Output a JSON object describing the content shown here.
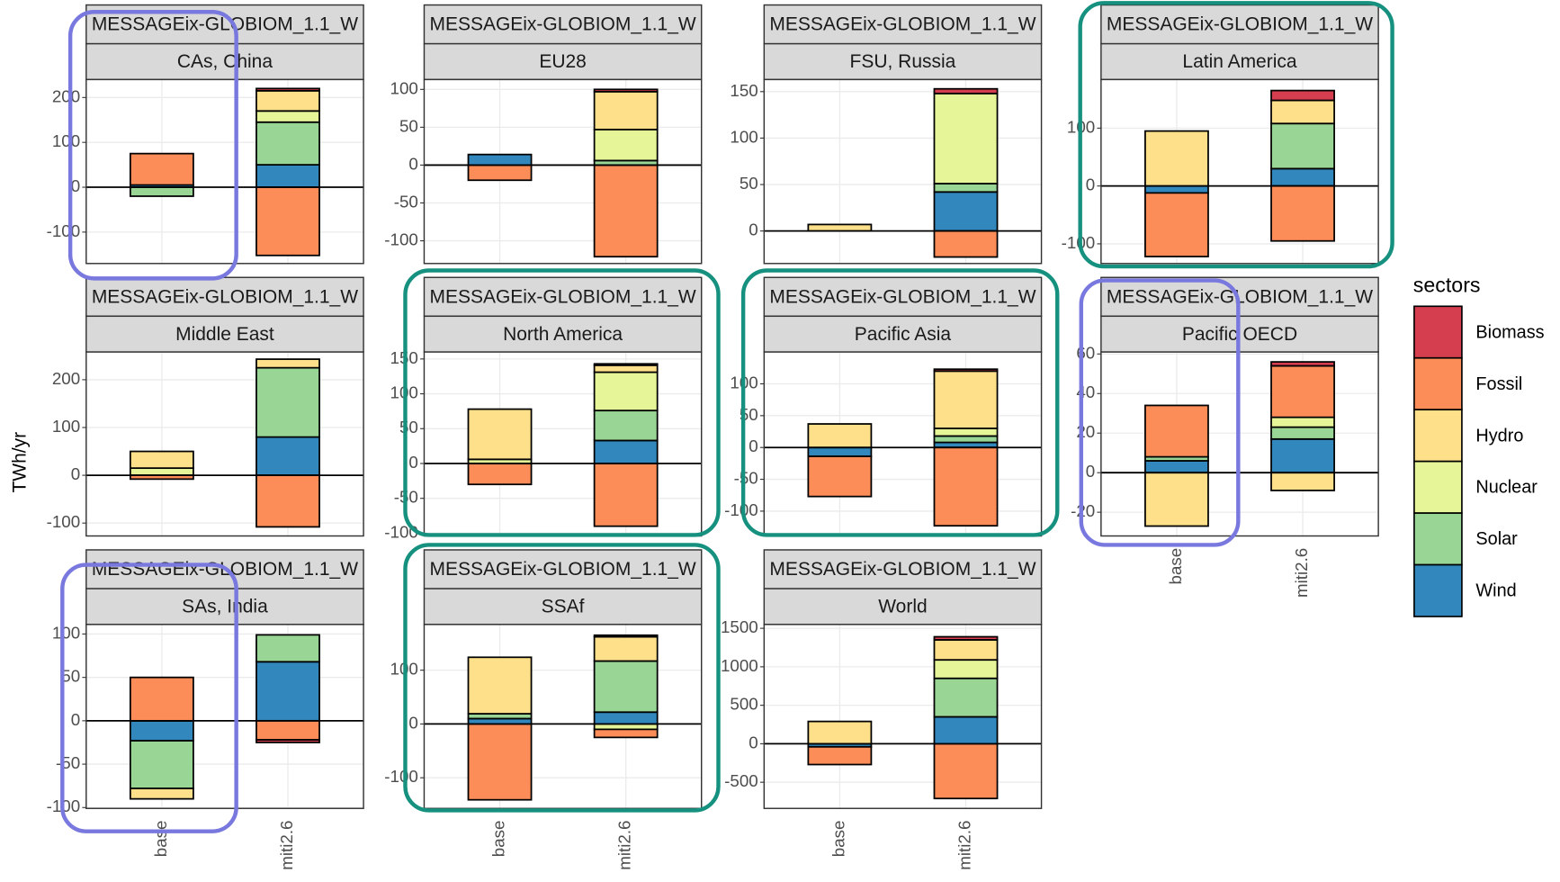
{
  "y_label": "TWh/yr",
  "legend_title": "sectors",
  "chart_data": [
    {
      "type": "bar",
      "model": "MESSAGEix-GLOBIOM_1.1_W",
      "title": "CAs, China",
      "categories": [
        null,
        null
      ],
      "ylim": [
        -170,
        240
      ],
      "yticks": [
        -100,
        0,
        100,
        200
      ],
      "grid": true,
      "series": [
        {
          "name": "Biomass",
          "color": "#d53e4f",
          "values": [
            0,
            5
          ]
        },
        {
          "name": "Fossil",
          "color": "#fc8d59",
          "values": [
            70,
            -152
          ]
        },
        {
          "name": "Hydro",
          "color": "#fee08b",
          "values": [
            0,
            45
          ]
        },
        {
          "name": "Nuclear",
          "color": "#e6f598",
          "values": [
            0,
            25
          ]
        },
        {
          "name": "Solar",
          "color": "#99d594",
          "values": [
            -20,
            95
          ]
        },
        {
          "name": "Wind",
          "color": "#3288bd",
          "values": [
            5,
            50
          ]
        }
      ]
    },
    {
      "type": "bar",
      "model": "MESSAGEix-GLOBIOM_1.1_W",
      "title": "EU28",
      "categories": [
        null,
        null
      ],
      "ylim": [
        -130,
        113
      ],
      "yticks": [
        -100,
        -50,
        0,
        50,
        100
      ],
      "grid": true,
      "series": [
        {
          "name": "Biomass",
          "color": "#d53e4f",
          "values": [
            0,
            3
          ]
        },
        {
          "name": "Fossil",
          "color": "#fc8d59",
          "values": [
            -20,
            -121
          ]
        },
        {
          "name": "Hydro",
          "color": "#fee08b",
          "values": [
            0,
            50
          ]
        },
        {
          "name": "Nuclear",
          "color": "#e6f598",
          "values": [
            0,
            41
          ]
        },
        {
          "name": "Solar",
          "color": "#99d594",
          "values": [
            0,
            6
          ]
        },
        {
          "name": "Wind",
          "color": "#3288bd",
          "values": [
            14,
            0
          ]
        }
      ]
    },
    {
      "type": "bar",
      "model": "MESSAGEix-GLOBIOM_1.1_W",
      "title": "FSU, Russia",
      "categories": [
        null,
        null
      ],
      "ylim": [
        -35,
        163
      ],
      "yticks": [
        0,
        50,
        100,
        150
      ],
      "grid": true,
      "series": [
        {
          "name": "Biomass",
          "color": "#d53e4f",
          "values": [
            0,
            5
          ]
        },
        {
          "name": "Fossil",
          "color": "#fc8d59",
          "values": [
            0,
            -28
          ]
        },
        {
          "name": "Hydro",
          "color": "#fee08b",
          "values": [
            7,
            0
          ]
        },
        {
          "name": "Nuclear",
          "color": "#e6f598",
          "values": [
            0,
            97
          ]
        },
        {
          "name": "Solar",
          "color": "#99d594",
          "values": [
            0,
            9
          ]
        },
        {
          "name": "Wind",
          "color": "#3288bd",
          "values": [
            0,
            42
          ]
        }
      ]
    },
    {
      "type": "bar",
      "model": "MESSAGEix-GLOBIOM_1.1_W",
      "title": "Latin America",
      "categories": [
        null,
        null
      ],
      "ylim": [
        -134,
        184
      ],
      "yticks": [
        -100,
        0,
        100
      ],
      "grid": true,
      "series": [
        {
          "name": "Biomass",
          "color": "#d53e4f",
          "values": [
            0,
            17
          ]
        },
        {
          "name": "Fossil",
          "color": "#fc8d59",
          "values": [
            -110,
            -95
          ]
        },
        {
          "name": "Hydro",
          "color": "#fee08b",
          "values": [
            95,
            40
          ]
        },
        {
          "name": "Nuclear",
          "color": "#e6f598",
          "values": [
            0,
            0
          ]
        },
        {
          "name": "Solar",
          "color": "#99d594",
          "values": [
            0,
            78
          ]
        },
        {
          "name": "Wind",
          "color": "#3288bd",
          "values": [
            -12,
            30
          ]
        }
      ]
    },
    {
      "type": "bar",
      "model": "MESSAGEix-GLOBIOM_1.1_W",
      "title": "Middle East",
      "categories": [
        null,
        null
      ],
      "ylim": [
        -127,
        258
      ],
      "yticks": [
        -100,
        0,
        100,
        200
      ],
      "grid": true,
      "series": [
        {
          "name": "Biomass",
          "color": "#d53e4f",
          "values": [
            0,
            0
          ]
        },
        {
          "name": "Fossil",
          "color": "#fc8d59",
          "values": [
            -8,
            -108
          ]
        },
        {
          "name": "Hydro",
          "color": "#fee08b",
          "values": [
            35,
            18
          ]
        },
        {
          "name": "Nuclear",
          "color": "#e6f598",
          "values": [
            15,
            0
          ]
        },
        {
          "name": "Solar",
          "color": "#99d594",
          "values": [
            0,
            145
          ]
        },
        {
          "name": "Wind",
          "color": "#3288bd",
          "values": [
            0,
            80
          ]
        }
      ]
    },
    {
      "type": "bar",
      "model": "MESSAGEix-GLOBIOM_1.1_W",
      "title": "North America",
      "categories": [
        null,
        null
      ],
      "ylim": [
        -104,
        160
      ],
      "yticks": [
        -100,
        -50,
        0,
        50,
        100,
        150
      ],
      "grid": true,
      "series": [
        {
          "name": "Biomass",
          "color": "#d53e4f",
          "values": [
            0,
            2
          ]
        },
        {
          "name": "Fossil",
          "color": "#fc8d59",
          "values": [
            -30,
            -90
          ]
        },
        {
          "name": "Hydro",
          "color": "#fee08b",
          "values": [
            72,
            10
          ]
        },
        {
          "name": "Nuclear",
          "color": "#e6f598",
          "values": [
            6,
            55
          ]
        },
        {
          "name": "Solar",
          "color": "#99d594",
          "values": [
            0,
            43
          ]
        },
        {
          "name": "Wind",
          "color": "#3288bd",
          "values": [
            0,
            33
          ]
        }
      ]
    },
    {
      "type": "bar",
      "model": "MESSAGEix-GLOBIOM_1.1_W",
      "title": "Pacific Asia",
      "categories": [
        null,
        null
      ],
      "ylim": [
        -139,
        150
      ],
      "yticks": [
        -100,
        -50,
        0,
        50,
        100
      ],
      "grid": true,
      "series": [
        {
          "name": "Biomass",
          "color": "#d53e4f",
          "values": [
            0,
            3
          ]
        },
        {
          "name": "Fossil",
          "color": "#fc8d59",
          "values": [
            -63,
            -123
          ]
        },
        {
          "name": "Hydro",
          "color": "#fee08b",
          "values": [
            37,
            90
          ]
        },
        {
          "name": "Nuclear",
          "color": "#e6f598",
          "values": [
            0,
            12
          ]
        },
        {
          "name": "Solar",
          "color": "#99d594",
          "values": [
            0,
            10
          ]
        },
        {
          "name": "Wind",
          "color": "#3288bd",
          "values": [
            -14,
            8
          ]
        }
      ]
    },
    {
      "type": "bar",
      "model": "MESSAGEix-GLOBIOM_1.1_W",
      "title": "Pacific OECD",
      "categories": [
        "base",
        "miti2.6"
      ],
      "ylim": [
        -32,
        61
      ],
      "yticks": [
        -20,
        0,
        20,
        40,
        60
      ],
      "grid": true,
      "series": [
        {
          "name": "Biomass",
          "color": "#d53e4f",
          "values": [
            0,
            2
          ]
        },
        {
          "name": "Fossil",
          "color": "#fc8d59",
          "values": [
            26,
            26
          ]
        },
        {
          "name": "Hydro",
          "color": "#fee08b",
          "values": [
            -27,
            -9
          ]
        },
        {
          "name": "Nuclear",
          "color": "#e6f598",
          "values": [
            0,
            5
          ]
        },
        {
          "name": "Solar",
          "color": "#99d594",
          "values": [
            2,
            6
          ]
        },
        {
          "name": "Wind",
          "color": "#3288bd",
          "values": [
            6,
            17
          ]
        }
      ]
    },
    {
      "type": "bar",
      "model": "MESSAGEix-GLOBIOM_1.1_W",
      "title": "SAs, India",
      "categories": [
        "base",
        "miti2.6"
      ],
      "ylim": [
        -101,
        111
      ],
      "yticks": [
        -100,
        -50,
        0,
        50,
        100
      ],
      "grid": true,
      "series": [
        {
          "name": "Biomass",
          "color": "#d53e4f",
          "values": [
            0,
            -3
          ]
        },
        {
          "name": "Fossil",
          "color": "#fc8d59",
          "values": [
            50,
            -22
          ]
        },
        {
          "name": "Hydro",
          "color": "#fee08b",
          "values": [
            -12,
            0
          ]
        },
        {
          "name": "Nuclear",
          "color": "#e6f598",
          "values": [
            0,
            0
          ]
        },
        {
          "name": "Solar",
          "color": "#99d594",
          "values": [
            -55,
            31
          ]
        },
        {
          "name": "Wind",
          "color": "#3288bd",
          "values": [
            -23,
            68
          ]
        }
      ]
    },
    {
      "type": "bar",
      "model": "MESSAGEix-GLOBIOM_1.1_W",
      "title": "SSAf",
      "categories": [
        "base",
        "miti2.6"
      ],
      "ylim": [
        -157,
        185
      ],
      "yticks": [
        -100,
        0,
        100
      ],
      "grid": true,
      "series": [
        {
          "name": "Biomass",
          "color": "#d53e4f",
          "values": [
            0,
            3
          ]
        },
        {
          "name": "Fossil",
          "color": "#fc8d59",
          "values": [
            -141,
            -15
          ]
        },
        {
          "name": "Hydro",
          "color": "#fee08b",
          "values": [
            105,
            45
          ]
        },
        {
          "name": "Nuclear",
          "color": "#e6f598",
          "values": [
            0,
            -10
          ]
        },
        {
          "name": "Solar",
          "color": "#99d594",
          "values": [
            9,
            95
          ]
        },
        {
          "name": "Wind",
          "color": "#3288bd",
          "values": [
            10,
            22
          ]
        }
      ]
    },
    {
      "type": "bar",
      "model": "MESSAGEix-GLOBIOM_1.1_W",
      "title": "World",
      "categories": [
        "base",
        "miti2.6"
      ],
      "ylim": [
        -840,
        1550
      ],
      "yticks": [
        -500,
        0,
        500,
        1000,
        1500
      ],
      "grid": true,
      "series": [
        {
          "name": "Biomass",
          "color": "#d53e4f",
          "values": [
            0,
            40
          ]
        },
        {
          "name": "Fossil",
          "color": "#fc8d59",
          "values": [
            -230,
            -711
          ]
        },
        {
          "name": "Hydro",
          "color": "#fee08b",
          "values": [
            290,
            260
          ]
        },
        {
          "name": "Nuclear",
          "color": "#e6f598",
          "values": [
            0,
            240
          ]
        },
        {
          "name": "Solar",
          "color": "#99d594",
          "values": [
            0,
            500
          ]
        },
        {
          "name": "Wind",
          "color": "#3288bd",
          "values": [
            -40,
            350
          ]
        }
      ]
    }
  ]
}
